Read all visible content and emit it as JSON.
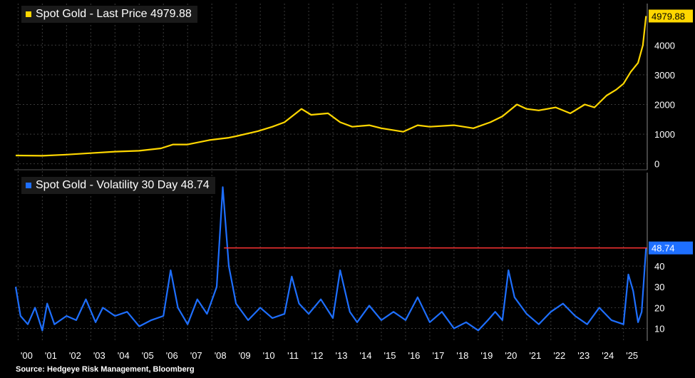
{
  "chart_data": [
    {
      "type": "line",
      "series": [
        {
          "name": "Spot Gold - Last Price 4979.88"
        }
      ],
      "last_value_label": "4979.88",
      "y_ticks": [
        "0",
        "1000",
        "2000",
        "3000",
        "4000"
      ],
      "ylim": [
        -200,
        5400
      ],
      "x": [
        1999.9,
        2001,
        2002,
        2003,
        2004,
        2005,
        2005.9,
        2006.4,
        2007,
        2007.9,
        2008.7,
        2009,
        2009.9,
        2010.5,
        2011,
        2011.7,
        2012.1,
        2012.8,
        2013.3,
        2013.8,
        2014.5,
        2015,
        2015.9,
        2016.5,
        2017,
        2018,
        2018.8,
        2019.5,
        2020,
        2020.6,
        2021,
        2021.5,
        2022.2,
        2022.8,
        2023.4,
        2023.8,
        2024.3,
        2024.7,
        2025,
        2025.3,
        2025.6,
        2025.8,
        2025.93
      ],
      "values": [
        280,
        270,
        310,
        360,
        410,
        440,
        520,
        650,
        650,
        800,
        880,
        930,
        1100,
        1250,
        1400,
        1850,
        1650,
        1700,
        1400,
        1250,
        1300,
        1200,
        1080,
        1300,
        1250,
        1300,
        1200,
        1400,
        1600,
        2000,
        1850,
        1800,
        1900,
        1700,
        2000,
        1900,
        2300,
        2500,
        2700,
        3100,
        3400,
        4000,
        4980
      ],
      "colors": {
        "line": "#ffd700",
        "label_bg": "#ffd700"
      }
    },
    {
      "type": "line",
      "series": [
        {
          "name": "Spot Gold - Volatility 30 Day 48.74"
        }
      ],
      "last_value_label": "48.74",
      "y_ticks": [
        "10",
        "20",
        "30",
        "40"
      ],
      "ylim": [
        4,
        85
      ],
      "reference_line": {
        "value": 48.74,
        "color": "#ff3333"
      },
      "x": [
        1999.9,
        2000.1,
        2000.4,
        2000.7,
        2001,
        2001.2,
        2001.5,
        2002,
        2002.4,
        2002.8,
        2003.2,
        2003.5,
        2004,
        2004.5,
        2005,
        2005.5,
        2006,
        2006.3,
        2006.6,
        2007,
        2007.4,
        2007.8,
        2008.2,
        2008.45,
        2008.7,
        2009,
        2009.5,
        2010,
        2010.5,
        2011,
        2011.3,
        2011.6,
        2012,
        2012.5,
        2013,
        2013.3,
        2013.7,
        2014,
        2014.5,
        2015,
        2015.5,
        2016,
        2016.5,
        2017,
        2017.5,
        2018,
        2018.5,
        2019,
        2019.4,
        2019.7,
        2020,
        2020.25,
        2020.5,
        2021,
        2021.5,
        2022,
        2022.5,
        2023,
        2023.5,
        2024,
        2024.5,
        2025,
        2025.2,
        2025.4,
        2025.6,
        2025.75,
        2025.93
      ],
      "values": [
        30,
        16,
        12,
        20,
        9,
        22,
        12,
        16,
        14,
        24,
        13,
        20,
        16,
        18,
        11,
        14,
        16,
        38,
        20,
        12,
        24,
        17,
        30,
        78,
        40,
        22,
        14,
        20,
        15,
        17,
        35,
        22,
        17,
        24,
        15,
        38,
        18,
        13,
        21,
        14,
        18,
        14,
        25,
        13,
        18,
        10,
        13,
        9,
        14,
        18,
        14,
        38,
        25,
        17,
        12,
        18,
        22,
        16,
        12,
        20,
        14,
        12,
        36,
        28,
        13,
        18,
        48.74
      ],
      "colors": {
        "line": "#1e6fff",
        "label_bg": "#1e6fff"
      }
    }
  ],
  "x_ticks": [
    "'00",
    "'01",
    "'02",
    "'03",
    "'04",
    "'05",
    "'06",
    "'07",
    "'08",
    "'09",
    "'10",
    "'11",
    "'12",
    "'13",
    "'14",
    "'15",
    "'16",
    "'17",
    "'18",
    "'19",
    "'20",
    "'21",
    "'22",
    "'23",
    "'24",
    "'25"
  ],
  "source": "Source: Hedgeye Risk Management, Bloomberg"
}
